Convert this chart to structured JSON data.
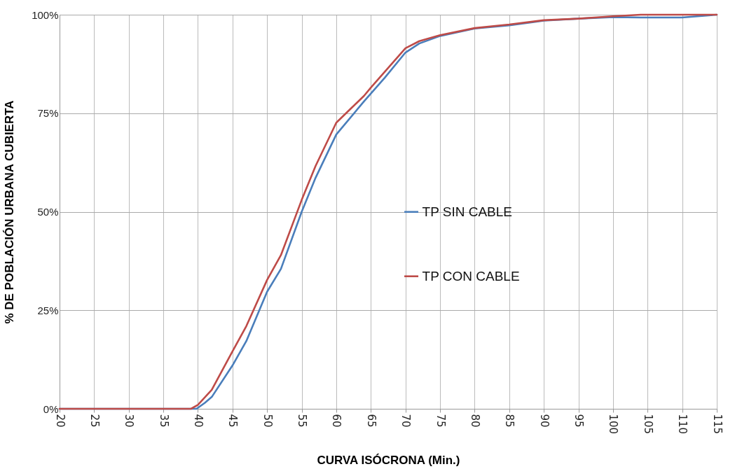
{
  "chart_data": {
    "type": "line",
    "xlabel": "CURVA ISÓCRONA (Min.)",
    "ylabel": "% DE POBLACIÓN URBANA CUBIERTA",
    "xlim": [
      20,
      115
    ],
    "xticks": [
      20,
      25,
      30,
      35,
      40,
      45,
      50,
      55,
      60,
      65,
      70,
      75,
      80,
      85,
      90,
      95,
      100,
      105,
      110,
      115
    ],
    "ylim": [
      0,
      100
    ],
    "yticks": [
      {
        "value": 0,
        "label": "0%"
      },
      {
        "value": 25,
        "label": "25%"
      },
      {
        "value": 50,
        "label": "50%"
      },
      {
        "value": 75,
        "label": "75%"
      },
      {
        "value": 100,
        "label": "100%"
      }
    ],
    "grid": true,
    "legend": "right",
    "marker": "none",
    "line_style": "solid",
    "series": [
      {
        "name": "TP SIN CABLE",
        "color": "#4a7ebb",
        "x": [
          20,
          39.8,
          41,
          42,
          45,
          47,
          50,
          52,
          55,
          57,
          60,
          64,
          65,
          67,
          70,
          72,
          75,
          80,
          85,
          90,
          95,
          100,
          104,
          110,
          115
        ],
        "values": [
          0,
          0,
          1.5,
          3,
          11,
          17.2,
          29.7,
          35.5,
          50,
          58.6,
          69.6,
          78,
          80,
          84,
          90.4,
          92.7,
          94.6,
          96.5,
          97.3,
          98.5,
          99,
          99.4,
          99.3,
          99.3,
          100
        ]
      },
      {
        "name": "TP CON CABLE",
        "color": "#be4b48",
        "x": [
          20,
          39,
          40,
          42,
          45,
          47,
          50,
          52,
          55,
          57,
          60,
          64,
          65,
          67,
          70,
          72,
          75,
          80,
          85,
          90,
          95,
          100,
          104,
          115
        ],
        "values": [
          0,
          0,
          1,
          4.8,
          14.6,
          21,
          32.7,
          39,
          53,
          61.6,
          72.6,
          79.4,
          81.5,
          85.5,
          91.5,
          93.3,
          94.8,
          96.6,
          97.5,
          98.6,
          99,
          99.6,
          100,
          100
        ]
      }
    ]
  }
}
